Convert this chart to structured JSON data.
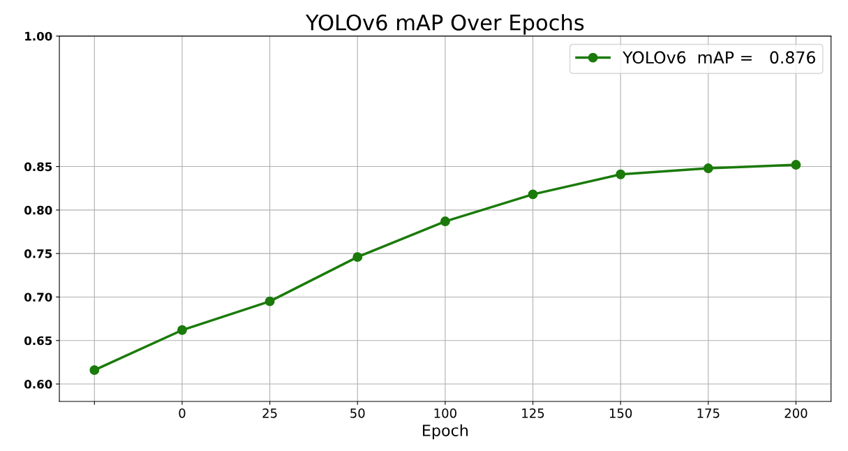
{
  "chart_data": {
    "type": "line",
    "title": "YOLOv6 mAP Over Epochs",
    "xlabel": "Epoch",
    "categories": [
      null,
      "0",
      "25",
      "50",
      "100",
      "125",
      "150",
      "175",
      "200"
    ],
    "series": [
      {
        "name": "YOLOv6  mAP =   0.876",
        "color": "#1a7a0a",
        "values": [
          0.616,
          0.662,
          0.695,
          0.746,
          0.787,
          0.818,
          0.841,
          0.848,
          0.852
        ]
      }
    ],
    "ylim": [
      0.58,
      1.0
    ],
    "yticks": [
      {
        "value": 0.6,
        "label": "0.60"
      },
      0.65,
      {
        "value": 0.7,
        "label": "0.70"
      },
      0.75,
      {
        "value": 0.8,
        "label": "0.80"
      },
      0.85,
      {
        "value": 1,
        "label": "1.00"
      }
    ],
    "grid": true,
    "legend": "top right",
    "marker": "circle",
    "line_style": "solid"
  }
}
